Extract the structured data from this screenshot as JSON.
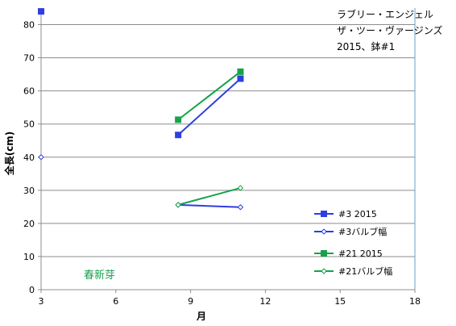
{
  "chart_data": {
    "type": "line",
    "title_lines": [
      "ラブリー・エンジェル",
      "ザ・ツー・ヴァージンズ",
      "2015、鉢#1"
    ],
    "xlabel": "月",
    "ylabel": "全長(cm)",
    "xlim": [
      3,
      18
    ],
    "ylim": [
      0,
      85
    ],
    "xticks": [
      3,
      6,
      9,
      12,
      15,
      18
    ],
    "yticks": [
      0,
      10,
      20,
      30,
      40,
      50,
      60,
      70,
      80
    ],
    "grid": "horizontal",
    "legend_position": "right",
    "annotation": "春新芽",
    "series": [
      {
        "name": "#3 2015",
        "color": "#2e3fe0",
        "marker": "square-filled",
        "points": [
          [
            8.5,
            46.7
          ],
          [
            11,
            63.7
          ]
        ]
      },
      {
        "name": "#3バルブ幅",
        "color": "#2e3fe0",
        "marker": "diamond-open",
        "points": [
          [
            8.5,
            25.6
          ],
          [
            11,
            24.9
          ]
        ]
      },
      {
        "name": "#21 2015",
        "color": "#16a34a",
        "marker": "square-filled",
        "points": [
          [
            8.5,
            51.3
          ],
          [
            11,
            65.8
          ]
        ]
      },
      {
        "name": "#21バルブ幅",
        "color": "#16a34a",
        "marker": "diamond-open",
        "points": [
          [
            8.5,
            25.6
          ],
          [
            11,
            30.7
          ]
        ]
      }
    ],
    "stray_markers": [
      {
        "color": "#2e3fe0",
        "marker": "square-filled",
        "point": [
          3,
          84
        ]
      },
      {
        "color": "#2e3fe0",
        "marker": "diamond-open",
        "point": [
          3,
          40
        ]
      }
    ]
  }
}
